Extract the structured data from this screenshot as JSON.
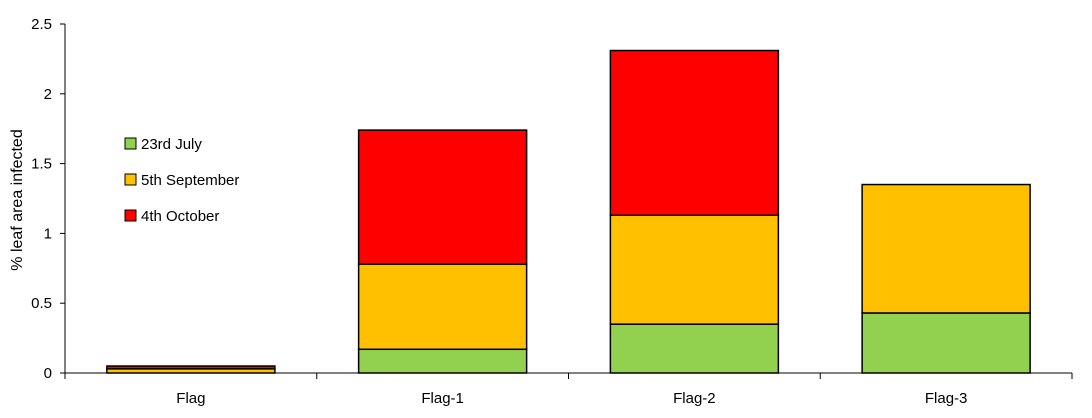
{
  "chart_data": {
    "type": "bar",
    "stacked": true,
    "categories": [
      "Flag",
      "Flag-1",
      "Flag-2",
      "Flag-3"
    ],
    "series": [
      {
        "name": "23rd July",
        "color": "#92D050",
        "values": [
          0.0,
          0.17,
          0.35,
          0.43
        ]
      },
      {
        "name": "5th September",
        "color": "#FFC000",
        "values": [
          0.03,
          0.61,
          0.78,
          0.92
        ]
      },
      {
        "name": "4th October",
        "color": "#FF0000",
        "values": [
          0.02,
          0.96,
          1.18,
          0.0
        ]
      }
    ],
    "title": "",
    "xlabel": "",
    "ylabel": "% leaf area infected",
    "ylim": [
      0,
      2.5
    ],
    "yticks": [
      "0",
      "0.5",
      "1",
      "1.5",
      "2",
      "2.5"
    ],
    "grid": false,
    "legend_position": "left"
  }
}
